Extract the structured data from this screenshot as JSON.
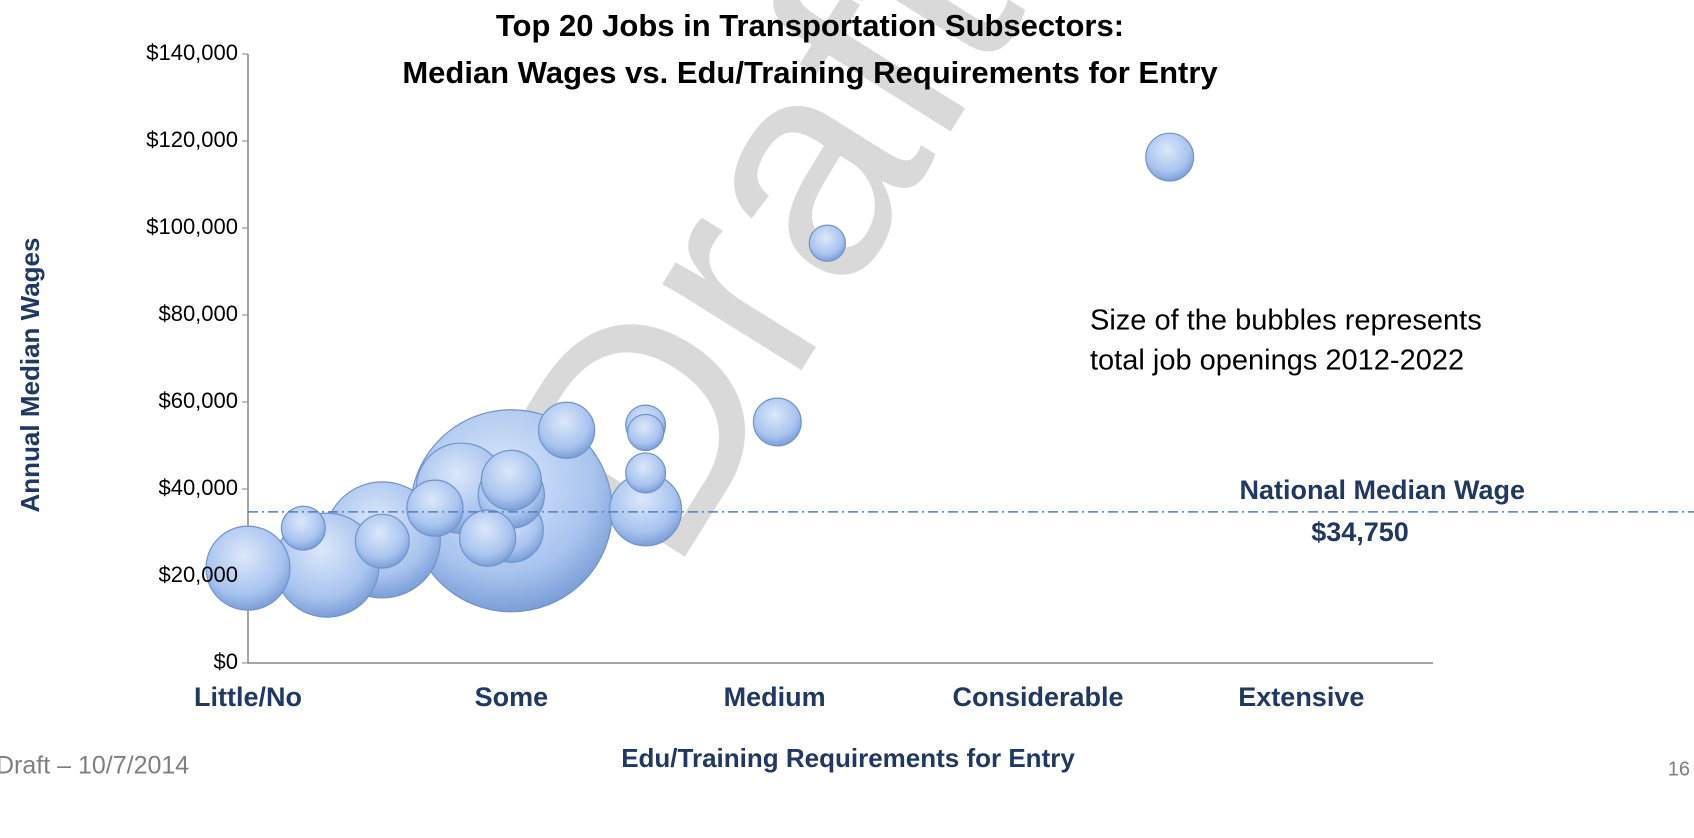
{
  "chart_data": {
    "type": "bubble",
    "title": [
      "Top 20 Jobs in Transportation Subsectors:",
      "Median Wages vs. Edu/Training Requirements for Entry"
    ],
    "xlabel": "Edu/Training Requirements for Entry",
    "ylabel": "Annual Median Wages",
    "x": [
      2.0,
      1.51,
      1.3,
      1.81,
      1.0,
      2.51,
      2.0,
      2.0,
      2.0,
      1.91,
      1.71,
      2.21,
      1.51,
      1.21,
      2.51,
      2.51,
      2.51,
      3.01,
      3.2,
      4.5
    ],
    "y": [
      35000,
      28300,
      22500,
      40200,
      21800,
      35200,
      30500,
      38600,
      42000,
      28700,
      35600,
      53500,
      28000,
      31000,
      43700,
      54700,
      53000,
      55400,
      96500,
      116300
    ],
    "size": [
      100000,
      33000,
      26500,
      19900,
      17300,
      12700,
      10000,
      10700,
      8800,
      7700,
      7700,
      7700,
      7100,
      4700,
      3900,
      3900,
      3200,
      5600,
      3200,
      5600
    ],
    "color": "#9dbcec",
    "xlim": [
      1,
      5.5
    ],
    "xticks": [
      {
        "value": 1,
        "label": "Little/No"
      },
      {
        "value": 2,
        "label": "Some"
      },
      {
        "value": 3,
        "label": "Medium"
      },
      {
        "value": 4,
        "label": "Considerable"
      },
      {
        "value": 5,
        "label": "Extensive"
      }
    ],
    "ylim": [
      0,
      140000
    ],
    "yticks": [
      {
        "value": 0,
        "label": "$0"
      },
      {
        "value": 20000,
        "label": "$20,000"
      },
      {
        "value": 40000,
        "label": "$40,000"
      },
      {
        "value": 60000,
        "label": "$60,000"
      },
      {
        "value": 80000,
        "label": "$80,000"
      },
      {
        "value": 100000,
        "label": "$100,000"
      },
      {
        "value": 120000,
        "label": "$120,000"
      },
      {
        "value": 140000,
        "label": "$140,000"
      }
    ],
    "reference_line": {
      "label": "National Median Wage",
      "value": 34750,
      "value_label": "$34,750",
      "color": "#4f81bd"
    },
    "note": [
      "Size of the bubbles represents",
      "total job openings 2012-2022"
    ]
  },
  "watermark": "Draft",
  "footer": {
    "left": "Draft – 10/7/2014",
    "page": "16"
  }
}
